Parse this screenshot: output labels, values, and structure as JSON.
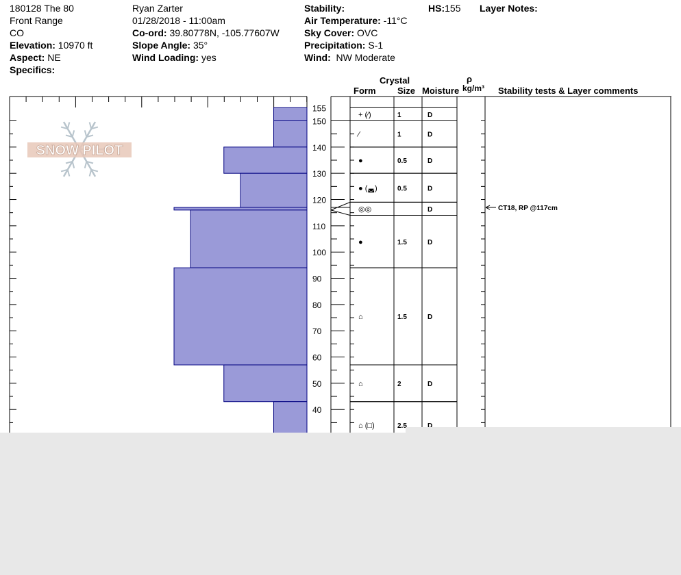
{
  "header": {
    "col1": {
      "site": "180128 The 80",
      "range": "Front Range",
      "state": "CO",
      "elevation_label": "Elevation:",
      "elevation_value": "10970 ft",
      "aspect_label": "Aspect:",
      "aspect_value": "NE",
      "specifics_label": "Specifics:"
    },
    "col2": {
      "observer": "Ryan Zarter",
      "datetime": "01/28/2018 - 11:00am",
      "coord_label": "Co-ord:",
      "coord_value": "39.80778N, -105.77607W",
      "slope_label": "Slope Angle:",
      "slope_value": "35°",
      "wind_loading_label": "Wind Loading:",
      "wind_loading_value": "yes"
    },
    "col3": {
      "stability_label": "Stability:",
      "air_temp_label": "Air Temperature:",
      "air_temp_value": "-11°C",
      "sky_label": "Sky Cover:",
      "sky_value": "OVC",
      "precip_label": "Precipitation:",
      "precip_value": "S-1",
      "wind_label": "Wind:",
      "wind_value": "NW Moderate"
    },
    "col4": {
      "hs_label": "HS:",
      "hs_value": "155",
      "layer_notes_label": "Layer Notes:"
    }
  },
  "columns": {
    "crystal": "Crystal",
    "form": "Form",
    "size": "Size",
    "moisture": "Moisture",
    "rho": "ρ",
    "density_unit": "kg/m³",
    "stability": "Stability tests & Layer comments"
  },
  "logo": {
    "text": "SNOW PILOT"
  },
  "colors": {
    "hardness_fill": "#9a9ad8",
    "hardness_stroke": "#000080",
    "logo": "#e8c8b8",
    "flake": "#b8c4cc"
  },
  "chart_data": {
    "type": "bar",
    "title": "",
    "ylabel": "",
    "y_ticks_labeled": [
      40,
      50,
      60,
      70,
      80,
      90,
      100,
      110,
      120,
      130,
      140,
      150,
      155
    ],
    "hardness_scale_max": 4,
    "layers": [
      {
        "top": 155,
        "bottom": 150,
        "hardness": 0.5
      },
      {
        "top": 150,
        "bottom": 140,
        "hardness": 0.5
      },
      {
        "top": 140,
        "bottom": 130,
        "hardness": 1.25
      },
      {
        "top": 130,
        "bottom": 117,
        "hardness": 1.0
      },
      {
        "top": 117,
        "bottom": 116,
        "hardness": 2.0
      },
      {
        "top": 116,
        "bottom": 94,
        "hardness": 1.75
      },
      {
        "top": 94,
        "bottom": 57,
        "hardness": 2.0
      },
      {
        "top": 57,
        "bottom": 43,
        "hardness": 1.25
      },
      {
        "top": 43,
        "bottom": 25,
        "hardness": 0.5
      }
    ],
    "crystal_rows": [
      {
        "top": 155,
        "bottom": 150,
        "form": "+ (⁄)",
        "size": "1",
        "moisture": "D"
      },
      {
        "top": 150,
        "bottom": 140,
        "form": "⁄",
        "size": "1",
        "moisture": "D"
      },
      {
        "top": 140,
        "bottom": 130,
        "form": "●",
        "size": "0.5",
        "moisture": "D"
      },
      {
        "top": 130,
        "bottom": 119,
        "form": "● (◛)",
        "size": "0.5",
        "moisture": "D"
      },
      {
        "top": 119,
        "bottom": 114,
        "form": "◎◎",
        "size": "",
        "moisture": "D"
      },
      {
        "top": 114,
        "bottom": 94,
        "form": "●",
        "size": "1.5",
        "moisture": "D"
      },
      {
        "top": 94,
        "bottom": 57,
        "form": "⌂",
        "size": "1.5",
        "moisture": "D"
      },
      {
        "top": 57,
        "bottom": 43,
        "form": "⌂",
        "size": "2",
        "moisture": "D"
      },
      {
        "top": 43,
        "bottom": 25,
        "form": "⌂ (□)",
        "size": "2.5",
        "moisture": "D"
      }
    ],
    "tests": [
      {
        "depth": 117,
        "text": "CT18, RP @117cm"
      }
    ]
  }
}
